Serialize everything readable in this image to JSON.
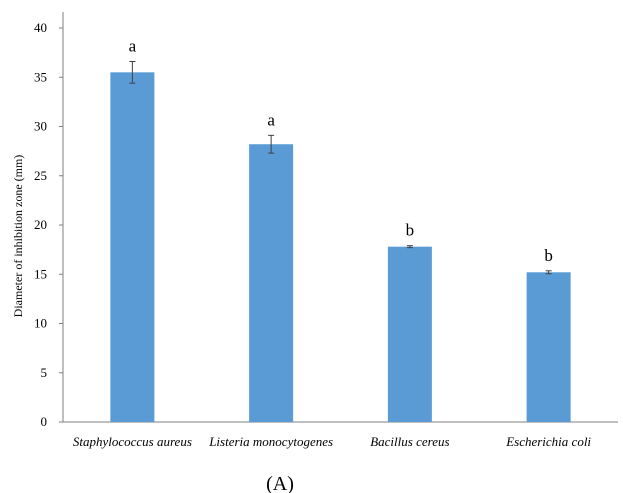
{
  "chart_data": {
    "type": "bar",
    "categories": [
      "Staphylococcus aureus",
      "Listeria monocytogenes",
      "Bacillus cereus",
      "Escherichia coli"
    ],
    "values": [
      35.5,
      28.2,
      17.8,
      15.2
    ],
    "errors": [
      1.1,
      0.9,
      0.1,
      0.15
    ],
    "significance_letters": [
      "a",
      "a",
      "b",
      "b"
    ],
    "ylabel": "Diameter  of inhibition zone (mm)",
    "xlabel": "",
    "ylim": [
      0,
      40
    ],
    "yticks": [
      "0",
      "5",
      "10",
      "15",
      "20",
      "25",
      "30",
      "35",
      "40"
    ],
    "grid": false,
    "bar_color": "#5b9bd5",
    "panel_label": "(A)"
  }
}
